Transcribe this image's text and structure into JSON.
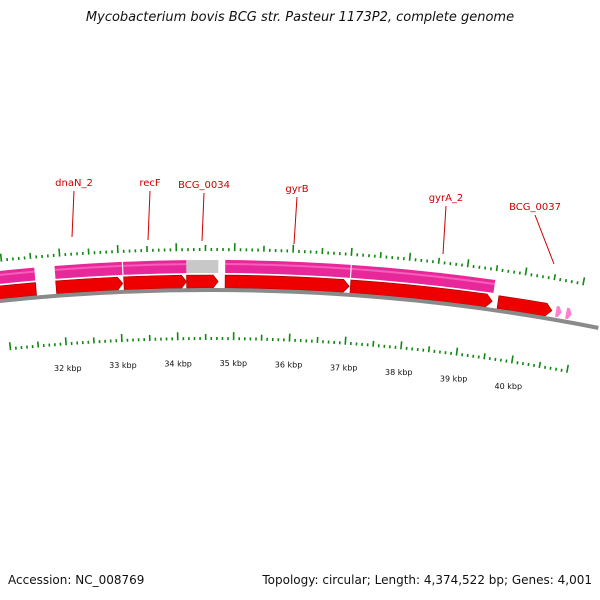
{
  "header": {
    "title": "Mycobacterium bovis BCG str. Pasteur 1173P2, complete genome"
  },
  "footer": {
    "accession": "Accession: NC_008769",
    "summary": "Topology: circular; Length: 4,374,522 bp; Genes: 4,001"
  },
  "colors": {
    "cds": "#ee0000",
    "cds_border": "#990000",
    "gene": "#e8289a",
    "gene_highlight": "#ff7fcf",
    "pseudogene": "#c8c8c8",
    "tick": "#118811",
    "label": "#cc0000",
    "backbone": "#8a8a8a"
  },
  "map": {
    "kbp_labels": [
      {
        "kb": 32,
        "text": "32 kbp"
      },
      {
        "kb": 33,
        "text": "33 kbp"
      },
      {
        "kb": 34,
        "text": "34 kbp"
      },
      {
        "kb": 35,
        "text": "35 kbp"
      },
      {
        "kb": 36,
        "text": "36 kbp"
      },
      {
        "kb": 37,
        "text": "37 kbp"
      },
      {
        "kb": 38,
        "text": "38 kbp"
      },
      {
        "kb": 39,
        "text": "39 kbp"
      },
      {
        "kb": 40,
        "text": "40 kbp"
      }
    ],
    "gene_labels": [
      {
        "name": "dnaN_2"
      },
      {
        "name": "recF"
      },
      {
        "name": "BCG_0034"
      },
      {
        "name": "gyrB"
      },
      {
        "name": "gyrA_2"
      },
      {
        "name": "BCG_0037"
      }
    ]
  }
}
